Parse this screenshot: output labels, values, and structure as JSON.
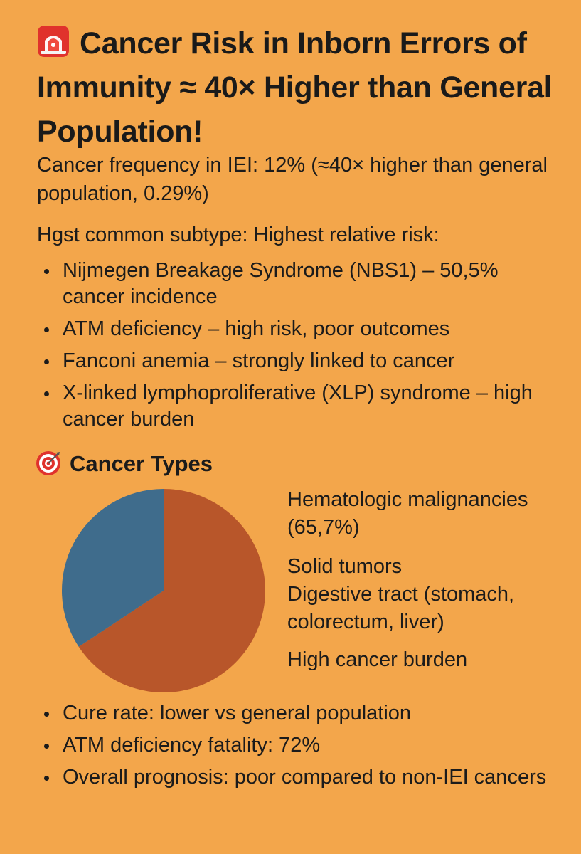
{
  "title": "Cancer Risk in Inborn Errors of Immunity ≈ 40× Higher than General Population!",
  "icons": {
    "title_icon": "siren-icon",
    "section_icon": "target-icon"
  },
  "frequency_text": "Cancer frequency in IEI: 12% (≈40× higher than general population, 0.29%)",
  "subtype_heading": "Hgst common subtype: Highest relative risk:",
  "risk_items": [
    "Nijmegen Breakage Syndrome (NBS1) – 50,5% cancer incidence",
    "ATM deficiency – high risk, poor outcomes",
    "Fanconi anemia – strongly linked to cancer",
    "X-linked lymphoproliferative (XLP) syndrome – high cancer burden"
  ],
  "cancer_types_heading": "Cancer Types",
  "legend": {
    "hematologic": "Hematologic malignancies (65,7%)",
    "solid": "Solid tumors",
    "digestive": "Digestive tract (stomach, colorectum, liver)",
    "burden": "High cancer burden"
  },
  "chart_data": {
    "type": "pie",
    "title": "Cancer Types",
    "slices": [
      {
        "label": "Hematologic malignancies",
        "value": 65.7,
        "color": "#B8562A"
      },
      {
        "label": "Solid tumors",
        "value": 34.3,
        "color": "#3F6C8C"
      }
    ]
  },
  "outcome_items": [
    "Cure rate: lower vs general population",
    "ATM deficiency fatality: 72%",
    "Overall prognosis: poor compared to non-IEI cancers"
  ],
  "colors": {
    "background": "#F3A64B",
    "text": "#1b1b1b",
    "hematologic_slice": "#B8562A",
    "solid_slice": "#3F6C8C",
    "siren_red": "#E0322C"
  }
}
